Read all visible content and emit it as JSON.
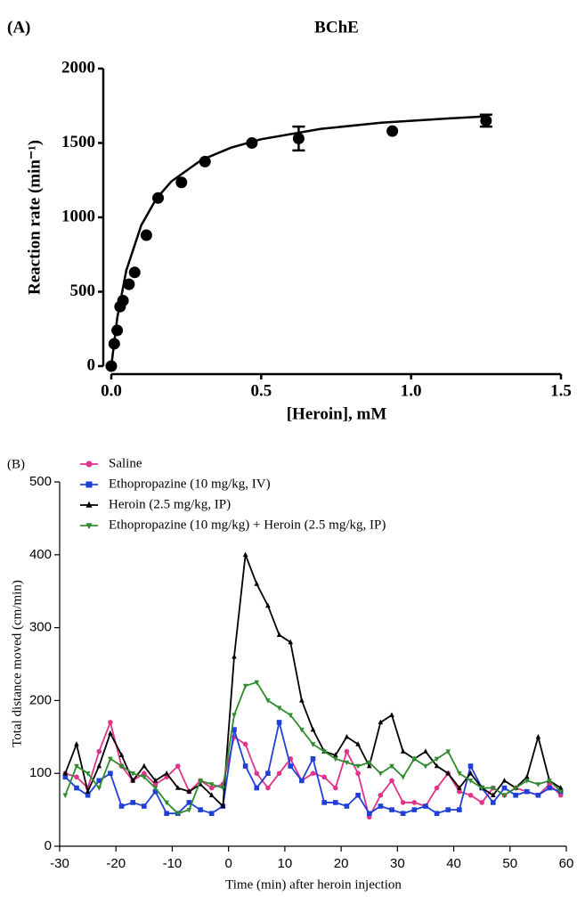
{
  "chart_data": [
    {
      "type": "scatter",
      "panel": "(A)",
      "title": "BChE",
      "x_label": "[Heroin], mM",
      "y_label": "Reaction rate (min⁻¹)",
      "x": [
        0,
        0.0098,
        0.0195,
        0.0293,
        0.039,
        0.059,
        0.078,
        0.117,
        0.156,
        0.234,
        0.3125,
        0.469,
        0.625,
        0.9375,
        1.25
      ],
      "values": [
        0,
        150,
        240,
        400,
        440,
        550,
        630,
        880,
        1130,
        1235,
        1375,
        1500,
        1530,
        1580,
        1650
      ],
      "errors": [
        null,
        null,
        null,
        null,
        null,
        null,
        null,
        null,
        null,
        null,
        null,
        null,
        80,
        null,
        40
      ],
      "color": "#000000",
      "fit": {
        "x": [
          0,
          0.02,
          0.05,
          0.1,
          0.15,
          0.2,
          0.3,
          0.4,
          0.5,
          0.7,
          0.9,
          1.1,
          1.25
        ],
        "values": [
          0,
          327,
          643,
          947,
          1125,
          1241,
          1385,
          1469,
          1525,
          1595,
          1636,
          1662,
          1679
        ]
      },
      "xlim": [
        0,
        1.5
      ],
      "xticks": [
        {
          "value": 0,
          "label": "0.0"
        },
        {
          "value": 0.5,
          "label": "0.5"
        },
        {
          "value": 1,
          "label": "1.0"
        },
        {
          "value": 1.5,
          "label": "1.5"
        }
      ],
      "ylim": [
        0,
        2000
      ],
      "yticks": [
        0,
        500,
        1000,
        1500,
        2000
      ],
      "grid": false
    },
    {
      "type": "line",
      "panel": "(B)",
      "x_label": "Time (min) after heroin injection",
      "y_label": "Total distance moved (cm/min)",
      "x": [
        -29,
        -27,
        -25,
        -23,
        -21,
        -19,
        -17,
        -15,
        -13,
        -11,
        -9,
        -7,
        -5,
        -3,
        -1,
        1,
        3,
        5,
        7,
        9,
        11,
        13,
        15,
        17,
        19,
        21,
        23,
        25,
        27,
        29,
        31,
        33,
        35,
        37,
        39,
        41,
        43,
        45,
        47,
        49,
        51,
        53,
        55,
        57,
        59
      ],
      "series": [
        {
          "name": "Saline",
          "color": "#e0338a",
          "marker": "circle",
          "values": [
            100,
            95,
            80,
            130,
            170,
            110,
            90,
            100,
            85,
            95,
            110,
            75,
            90,
            80,
            85,
            150,
            140,
            100,
            80,
            100,
            120,
            90,
            100,
            95,
            80,
            130,
            100,
            40,
            70,
            90,
            60,
            60,
            55,
            80,
            100,
            75,
            70,
            60,
            80,
            70,
            80,
            75,
            70,
            85,
            70
          ]
        },
        {
          "name": "Ethopropazine (10 mg/kg, IV)",
          "color": "#1f3fd6",
          "marker": "square",
          "values": [
            95,
            80,
            70,
            90,
            100,
            55,
            60,
            55,
            75,
            45,
            45,
            60,
            50,
            45,
            55,
            160,
            110,
            80,
            100,
            170,
            110,
            90,
            120,
            60,
            60,
            55,
            70,
            45,
            55,
            50,
            45,
            50,
            55,
            45,
            50,
            50,
            110,
            80,
            60,
            80,
            70,
            75,
            70,
            80,
            75
          ]
        },
        {
          "name": "Heroin (2.5 mg/kg, IP)",
          "color": "#000000",
          "marker": "triangle",
          "values": [
            100,
            140,
            75,
            110,
            155,
            125,
            90,
            110,
            90,
            100,
            80,
            75,
            85,
            70,
            55,
            260,
            400,
            360,
            330,
            290,
            280,
            200,
            160,
            130,
            125,
            150,
            140,
            110,
            170,
            180,
            130,
            120,
            130,
            110,
            100,
            80,
            100,
            80,
            70,
            90,
            80,
            95,
            150,
            90,
            80
          ]
        },
        {
          "name": "Ethopropazine (10 mg/kg) + Heroin  (2.5 mg/kg, IP)",
          "color": "#2e8b2e",
          "marker": "triangle-down",
          "values": [
            70,
            110,
            100,
            80,
            120,
            110,
            100,
            95,
            80,
            60,
            45,
            50,
            90,
            85,
            80,
            180,
            220,
            225,
            200,
            190,
            180,
            160,
            140,
            130,
            120,
            115,
            110,
            115,
            100,
            110,
            95,
            120,
            110,
            120,
            130,
            100,
            90,
            80,
            80,
            70,
            80,
            90,
            85,
            90,
            75
          ]
        }
      ],
      "xlim": [
        -30,
        60
      ],
      "xticks": [
        -30,
        -20,
        -10,
        0,
        10,
        20,
        30,
        40,
        50,
        60
      ],
      "ylim": [
        0,
        500
      ],
      "yticks": [
        0,
        100,
        200,
        300,
        400,
        500
      ],
      "grid": false,
      "legend": "upper left"
    }
  ]
}
